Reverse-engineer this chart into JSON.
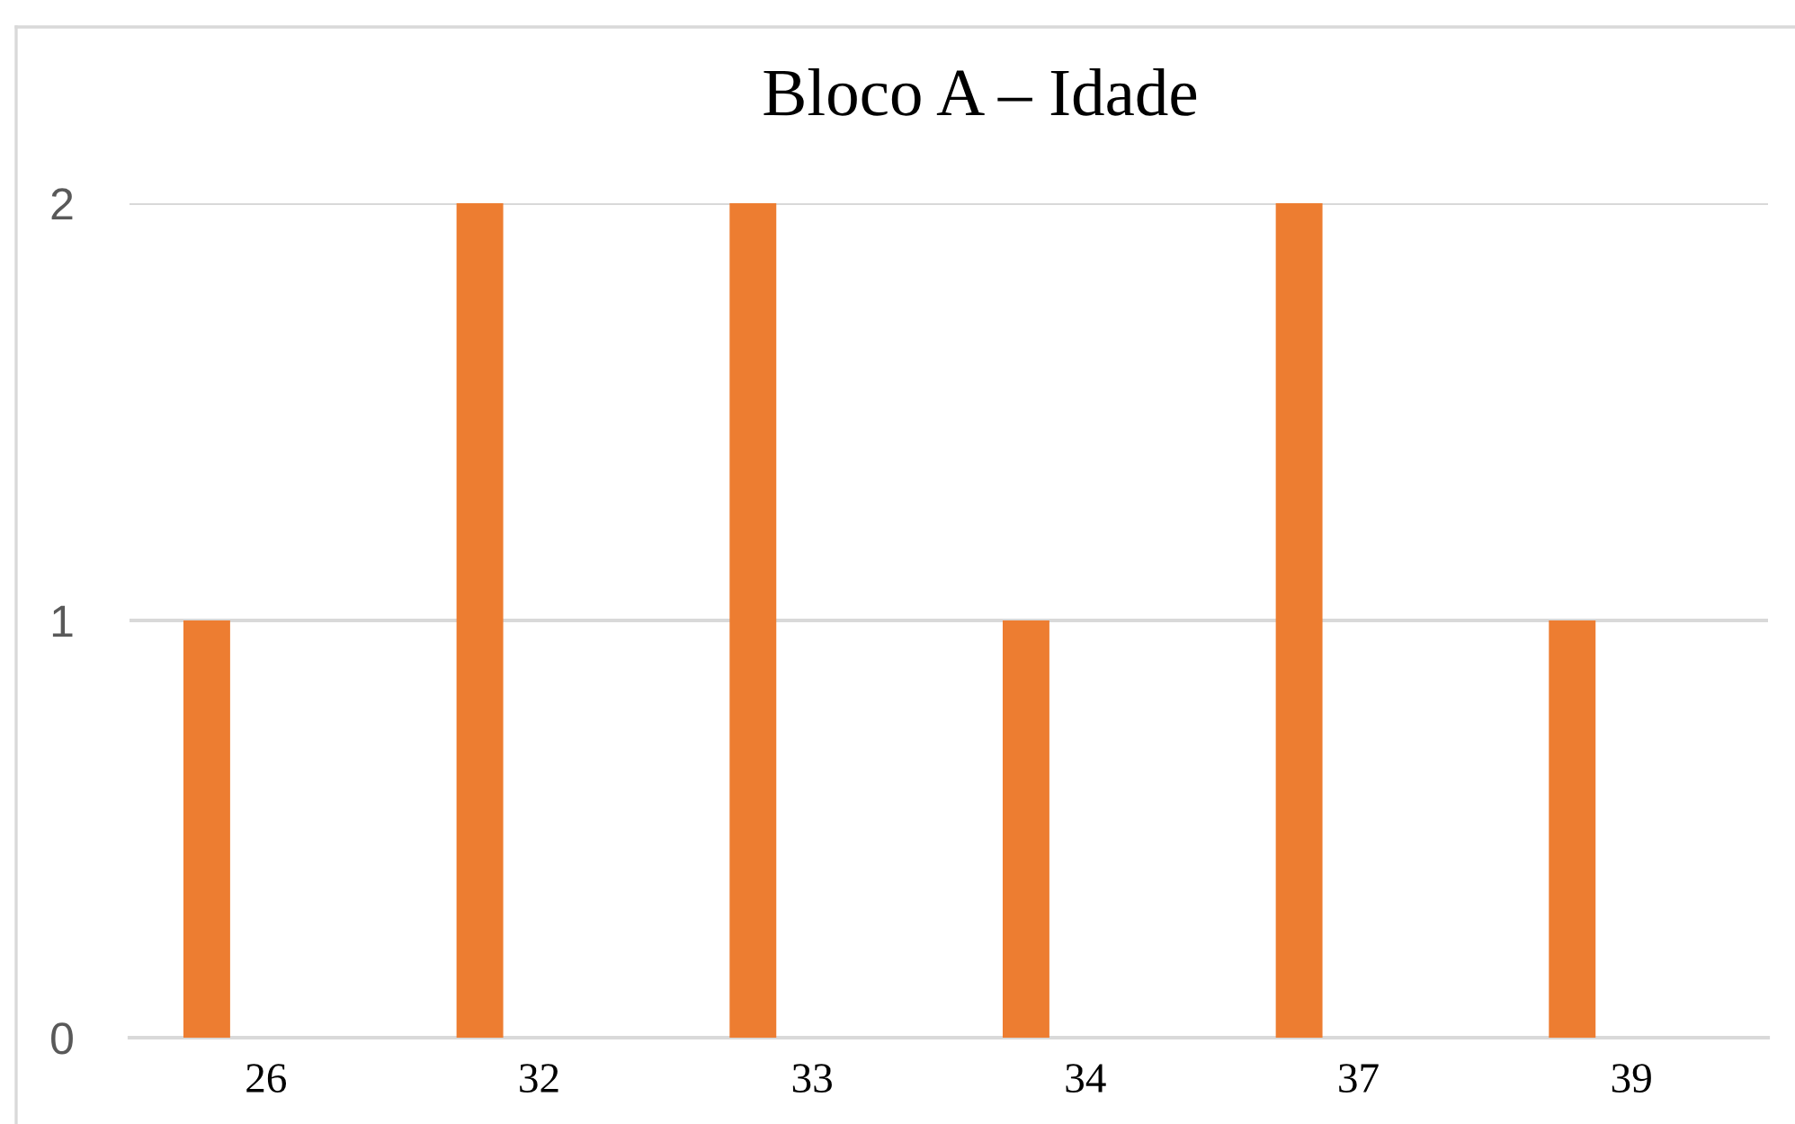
{
  "chart_data": {
    "type": "bar",
    "title": "Bloco A – Idade",
    "categories": [
      "26",
      "32",
      "33",
      "34",
      "37",
      "39"
    ],
    "values": [
      1,
      2,
      2,
      1,
      2,
      1
    ],
    "color": "#ed7d31",
    "ylim": [
      0,
      2
    ],
    "yticks": [
      0,
      1,
      2
    ],
    "grid": "y"
  }
}
